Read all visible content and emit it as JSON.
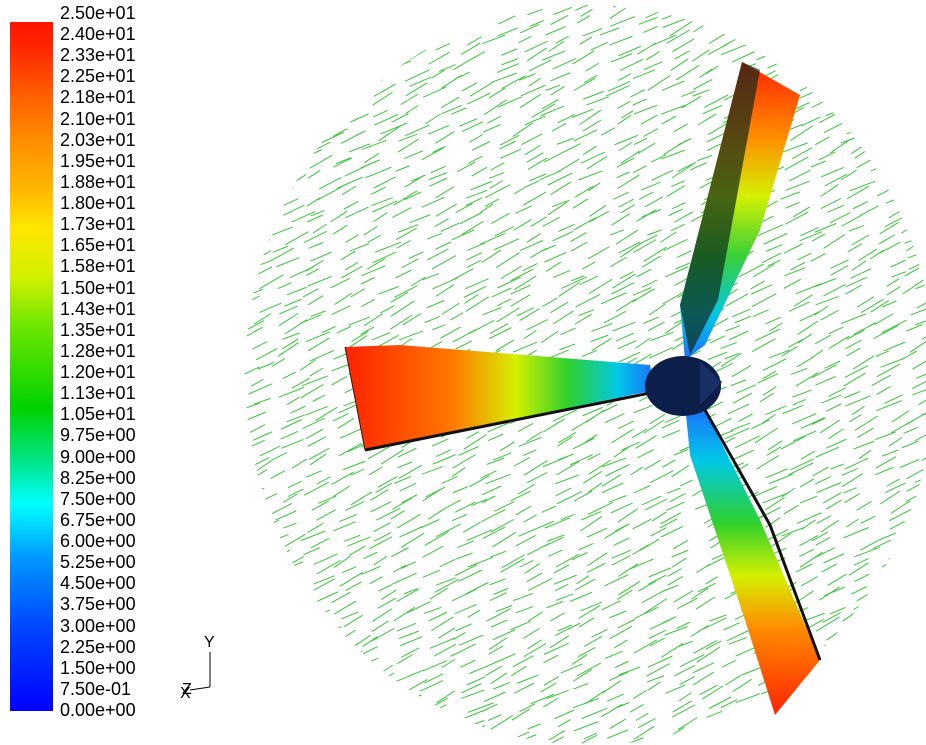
{
  "legend": {
    "labels": [
      "2.50e+01",
      "2.40e+01",
      "2.33e+01",
      "2.25e+01",
      "2.18e+01",
      "2.10e+01",
      "2.03e+01",
      "1.95e+01",
      "1.88e+01",
      "1.80e+01",
      "1.73e+01",
      "1.65e+01",
      "1.58e+01",
      "1.50e+01",
      "1.43e+01",
      "1.35e+01",
      "1.28e+01",
      "1.20e+01",
      "1.13e+01",
      "1.05e+01",
      "9.75e+00",
      "9.00e+00",
      "8.25e+00",
      "7.50e+00",
      "6.75e+00",
      "6.00e+00",
      "5.25e+00",
      "4.50e+00",
      "3.75e+00",
      "3.00e+00",
      "2.25e+00",
      "1.50e+00",
      "7.50e-01",
      "0.00e+00"
    ]
  },
  "axes": {
    "y_label": "Y",
    "z_label": "Z",
    "x_label": "X"
  },
  "colors": {
    "vector": "#39c439",
    "hub": "#0c1e4a",
    "blade_tip": "#ff2a00",
    "blade_root": "#1e7cff"
  }
}
